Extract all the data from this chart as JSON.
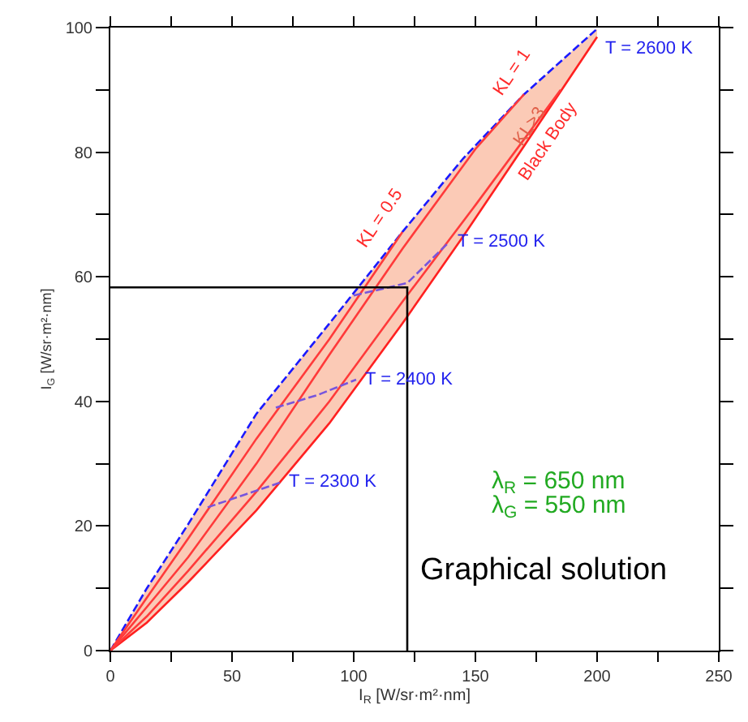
{
  "chart_data": {
    "type": "line",
    "xlabel": "I$_{R}$ [W/sr·m²·nm]",
    "ylabel": "I$_{G}$ [W/sr·m²·nm]",
    "xlim": [
      0,
      250
    ],
    "ylim": [
      0,
      100
    ],
    "xticks": [
      0,
      {
        "value": 25,
        "label": null
      },
      50,
      {
        "value": 75,
        "label": null
      },
      100,
      {
        "value": 125,
        "label": null
      },
      150,
      {
        "value": 175,
        "label": null
      },
      200,
      {
        "value": 225,
        "label": null
      },
      250
    ],
    "yticks": [
      0,
      {
        "value": 10,
        "label": null
      },
      20,
      {
        "value": 30,
        "label": null
      },
      40,
      {
        "value": 50,
        "label": null
      },
      60,
      {
        "value": 70,
        "label": null
      },
      80,
      {
        "value": 90,
        "label": null
      },
      100
    ],
    "grid": false,
    "series": [
      {
        "color": "#1a1aff",
        "line_style": "dashed",
        "x": [
          0,
          15,
          32,
          60,
          90,
          120,
          145,
          170,
          200
        ],
        "values": [
          0,
          10,
          20.3,
          38,
          52.5,
          67.2,
          79,
          89.3,
          99.8
        ],
        "lower": [
          0,
          4.5,
          11,
          22.5,
          36.5,
          52.5,
          66.5,
          81,
          98.5
        ],
        "upper": [
          0,
          10,
          20.3,
          38,
          52.5,
          67.2,
          79,
          89.3,
          99.8
        ]
      },
      {
        "color": "#ff2020",
        "line_style": "solid",
        "x": [
          0,
          15,
          32,
          60,
          90,
          120,
          145,
          170,
          200
        ],
        "values": [
          0,
          4.5,
          11,
          22.5,
          36.5,
          52.5,
          66.5,
          81,
          98.5
        ]
      },
      {
        "color": "#ff3a3a",
        "line_style": "solid",
        "x": [
          0,
          15,
          32,
          60,
          90,
          120,
          150,
          185
        ],
        "values": [
          0,
          5.5,
          12.8,
          25.5,
          40,
          56,
          71.5,
          90
        ]
      },
      {
        "color": "#ff3a3a",
        "line_style": "solid",
        "x": [
          0,
          15,
          32,
          60,
          90,
          120,
          150,
          170
        ],
        "values": [
          0,
          7,
          15,
          30,
          47.5,
          64.5,
          80.5,
          89.3
        ]
      },
      {
        "color": "#ff3a3a",
        "line_style": "solid",
        "x": [
          0,
          15,
          32,
          60,
          90,
          120
        ],
        "values": [
          0,
          8.5,
          18,
          34,
          50,
          67.2
        ]
      },
      {
        "color": "#7755dd",
        "line_style": "dashed",
        "x": [
          40,
          55,
          70
        ],
        "values": [
          23,
          25,
          27
        ]
      },
      {
        "color": "#7755dd",
        "line_style": "dashed",
        "x": [
          68,
          85,
          101
        ],
        "values": [
          39,
          41,
          43.5
        ]
      },
      {
        "color": "#7755dd",
        "line_style": "dashed",
        "x": [
          100,
          122,
          139
        ],
        "values": [
          57,
          59,
          65.5
        ]
      },
      {
        "color": "#000000",
        "line_style": "solid",
        "x": [
          0,
          122,
          122
        ],
        "values": [
          58.3,
          58.3,
          0
        ]
      }
    ],
    "annotations": [
      "KL = 0.5",
      "KL = 1",
      "KL>3",
      "Black Body",
      {
        "text": "T = 2300 K",
        "x": 70,
        "y": 27
      },
      {
        "text": "T = 2400 K",
        "x": 101,
        "y": 43.5
      },
      {
        "text": "T = 2500 K",
        "x": 139,
        "y": 65.5
      },
      {
        "text": "T = 2600 K",
        "x": 200,
        "y": 98.5
      },
      "λ$_{R}$ = 650 nm",
      "λ$_{G}$ = 550 nm",
      "Graphical solution"
    ]
  }
}
